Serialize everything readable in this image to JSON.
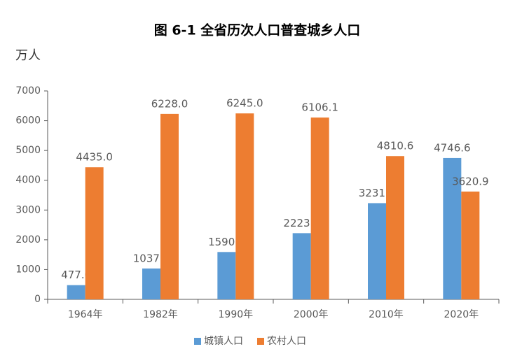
{
  "chart_data": {
    "type": "bar",
    "title": "图 6-1  全省历次人口普查城乡人口",
    "y_label": "万人",
    "categories": [
      "1964年",
      "1982年",
      "1990年",
      "2000年",
      "2010年",
      "2020年"
    ],
    "series": [
      {
        "name": "城镇人口",
        "color": "#5b9bd5",
        "values": [
          477,
          1037,
          1590,
          2223,
          3231.2,
          4746.6
        ],
        "value_labels": [
          "477.0",
          "1037.0",
          "1590.0",
          "2223.0",
          "3231.2",
          "4746.6"
        ]
      },
      {
        "name": "农村人口",
        "color": "#ed7d31",
        "values": [
          4435,
          6228,
          6245,
          6106.1,
          4810.6,
          3620.9
        ],
        "value_labels": [
          "4435.0",
          "6228.0",
          "6245.0",
          "6106.1",
          "4810.6",
          "3620.9"
        ]
      }
    ],
    "ylim": [
      0,
      7000
    ],
    "yticks": [
      0,
      1000,
      2000,
      3000,
      4000,
      5000,
      6000,
      7000
    ],
    "grid": false,
    "legend": "bottom"
  }
}
